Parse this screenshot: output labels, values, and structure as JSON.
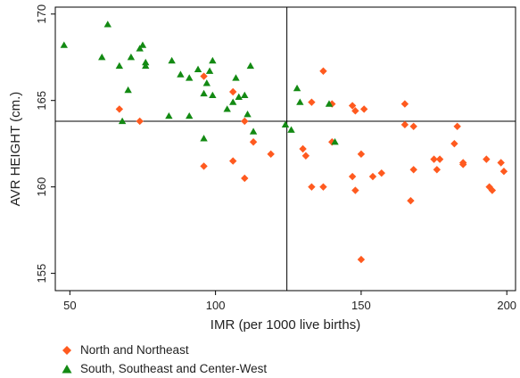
{
  "chart_data": {
    "type": "scatter",
    "xlabel": "IMR (per 1000 live births)",
    "ylabel": "AVR HEIGHT (cm.)",
    "xlim": [
      45,
      203
    ],
    "ylim": [
      154,
      170.4
    ],
    "xticks": [
      50,
      100,
      150,
      200
    ],
    "yticks": [
      155,
      160,
      165,
      170
    ],
    "reference_lines": {
      "x": 124.5,
      "y": 163.8
    },
    "grid": false,
    "legend_position": "bottom-left",
    "series": [
      {
        "name": "North and Northeast",
        "marker": "diamond",
        "color": "#FF5A1F",
        "points": [
          [
            67,
            164.5
          ],
          [
            74,
            163.8
          ],
          [
            96,
            166.4
          ],
          [
            96,
            161.2
          ],
          [
            106,
            165.5
          ],
          [
            106,
            161.5
          ],
          [
            110,
            163.8
          ],
          [
            110,
            160.5
          ],
          [
            113,
            162.6
          ],
          [
            119,
            161.9
          ],
          [
            130,
            162.2
          ],
          [
            131,
            161.8
          ],
          [
            133,
            164.9
          ],
          [
            133,
            160.0
          ],
          [
            137,
            166.7
          ],
          [
            137,
            160.0
          ],
          [
            140,
            164.8
          ],
          [
            140,
            162.6
          ],
          [
            147,
            164.7
          ],
          [
            147,
            160.6
          ],
          [
            148,
            164.4
          ],
          [
            148,
            159.8
          ],
          [
            150,
            161.9
          ],
          [
            151,
            164.5
          ],
          [
            150,
            155.8
          ],
          [
            154,
            160.6
          ],
          [
            157,
            160.8
          ],
          [
            165,
            164.8
          ],
          [
            165,
            163.6
          ],
          [
            167,
            159.2
          ],
          [
            168,
            161.0
          ],
          [
            168,
            163.5
          ],
          [
            175,
            161.6
          ],
          [
            176,
            161.0
          ],
          [
            177,
            161.6
          ],
          [
            182,
            162.5
          ],
          [
            183,
            163.5
          ],
          [
            185,
            161.4
          ],
          [
            185,
            161.3
          ],
          [
            193,
            161.6
          ],
          [
            194,
            160.0
          ],
          [
            195,
            159.8
          ],
          [
            198,
            161.4
          ],
          [
            199,
            160.9
          ]
        ]
      },
      {
        "name": "South, Southeast and Center-West",
        "marker": "triangle",
        "color": "#138A13",
        "points": [
          [
            48,
            168.2
          ],
          [
            61,
            167.5
          ],
          [
            63,
            169.4
          ],
          [
            67,
            167.0
          ],
          [
            68,
            163.8
          ],
          [
            70,
            165.6
          ],
          [
            71,
            167.5
          ],
          [
            74,
            168.0
          ],
          [
            75,
            168.2
          ],
          [
            76,
            167.2
          ],
          [
            76,
            167.0
          ],
          [
            84,
            164.1
          ],
          [
            85,
            167.3
          ],
          [
            88,
            166.5
          ],
          [
            91,
            164.1
          ],
          [
            91,
            166.3
          ],
          [
            94,
            166.8
          ],
          [
            96,
            165.4
          ],
          [
            97,
            166.0
          ],
          [
            96,
            162.8
          ],
          [
            98,
            166.7
          ],
          [
            99,
            167.3
          ],
          [
            99,
            165.3
          ],
          [
            104,
            164.5
          ],
          [
            106,
            164.9
          ],
          [
            107,
            166.3
          ],
          [
            108,
            165.2
          ],
          [
            110,
            165.3
          ],
          [
            111,
            164.2
          ],
          [
            112,
            167.0
          ],
          [
            113,
            163.2
          ],
          [
            124,
            163.6
          ],
          [
            126,
            163.3
          ],
          [
            128,
            165.7
          ],
          [
            129,
            164.9
          ],
          [
            139,
            164.8
          ],
          [
            141,
            162.6
          ]
        ]
      }
    ]
  }
}
